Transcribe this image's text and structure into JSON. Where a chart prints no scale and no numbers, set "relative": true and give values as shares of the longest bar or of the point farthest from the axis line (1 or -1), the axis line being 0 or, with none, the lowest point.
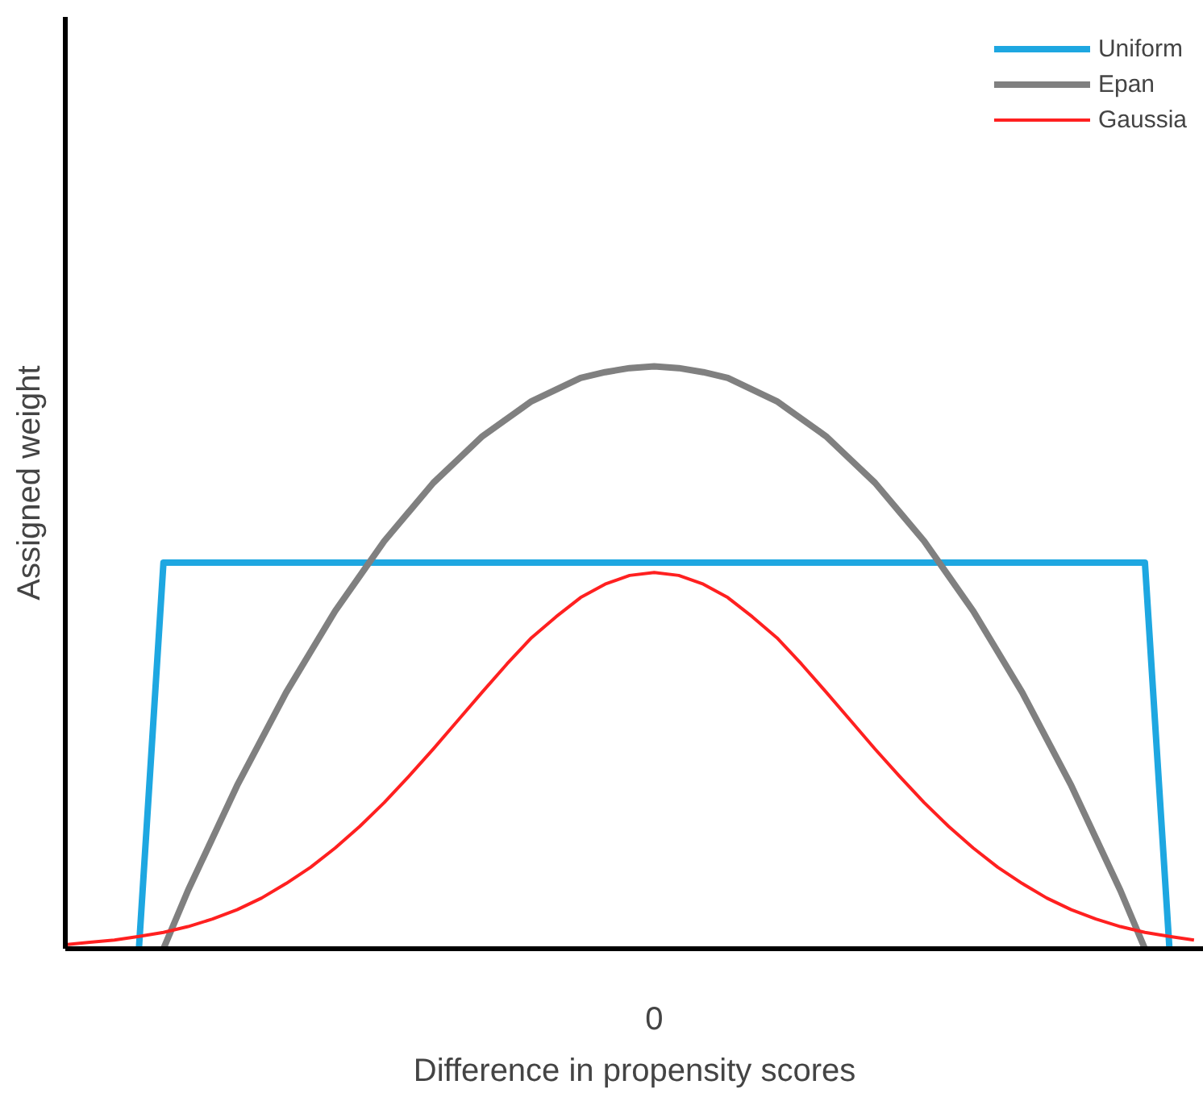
{
  "chart_data": {
    "type": "line",
    "relative": true,
    "xlabel": "Difference in propensity scores",
    "ylabel": "Assigned weight",
    "annotations": [
      "0"
    ],
    "categories": [
      null,
      null,
      null,
      null,
      null,
      null,
      null,
      null,
      null,
      null,
      null,
      null,
      null,
      null,
      null,
      null,
      null,
      null,
      null,
      null,
      null,
      null,
      null,
      null,
      null,
      null,
      null,
      null,
      null,
      null,
      null,
      null,
      null,
      null,
      null,
      null,
      null,
      null,
      null,
      null,
      null,
      null,
      null,
      null,
      null,
      null,
      null,
      null,
      null
    ],
    "legend": "top right",
    "grid": false,
    "marker": "none",
    "line_style": "solid",
    "series": [
      {
        "name": "Uniform",
        "color": "#1ea7e1",
        "values": [
          null,
          null,
          null,
          0,
          0.663,
          0.663,
          0.663,
          0.663,
          0.663,
          0.663,
          0.663,
          0.663,
          0.663,
          0.663,
          0.663,
          0.663,
          0.663,
          0.663,
          0.663,
          0.663,
          0.663,
          0.663,
          0.663,
          0.663,
          0.663,
          0.663,
          0.663,
          0.663,
          0.663,
          0.663,
          0.663,
          0.663,
          0.663,
          0.663,
          0.663,
          0.663,
          0.663,
          0.663,
          0.663,
          0.663,
          0.663,
          0.663,
          0.663,
          0.663,
          0.663,
          0,
          null,
          null,
          null
        ]
      },
      {
        "name": "Epan",
        "color": "#808080",
        "values": [
          null,
          null,
          null,
          null,
          0,
          0.1,
          0.19,
          0.28,
          0.36,
          0.44,
          0.51,
          0.58,
          0.64,
          0.7,
          0.75,
          0.8,
          0.84,
          0.88,
          0.91,
          0.94,
          0.96,
          0.98,
          0.99,
          0.997,
          1,
          0.997,
          0.99,
          0.98,
          0.96,
          0.94,
          0.91,
          0.88,
          0.84,
          0.8,
          0.75,
          0.7,
          0.64,
          0.58,
          0.51,
          0.44,
          0.36,
          0.28,
          0.19,
          0.1,
          0,
          null,
          null,
          null,
          null
        ]
      },
      {
        "name": "Gaussia",
        "color": "#ff2020",
        "values": [
          0.007,
          0.011,
          0.015,
          0.021,
          0.028,
          0.038,
          0.051,
          0.067,
          0.087,
          0.112,
          0.14,
          0.173,
          0.21,
          0.251,
          0.296,
          0.343,
          0.392,
          0.441,
          0.489,
          0.534,
          0.57,
          0.603,
          0.626,
          0.641,
          0.646,
          0.641,
          0.626,
          0.603,
          0.57,
          0.534,
          0.489,
          0.441,
          0.392,
          0.343,
          0.296,
          0.251,
          0.21,
          0.173,
          0.14,
          0.112,
          0.087,
          0.067,
          0.051,
          0.038,
          0.028,
          0.021,
          0.015,
          null,
          null
        ]
      }
    ]
  }
}
